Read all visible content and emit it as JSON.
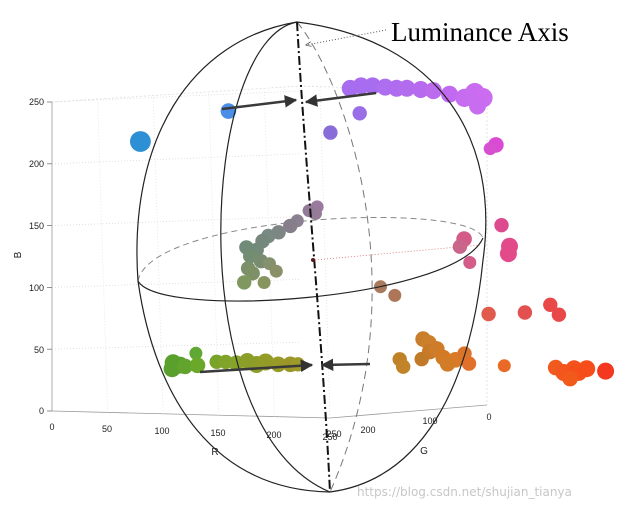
{
  "chart_data": {
    "type": "scatter",
    "projection": "3d",
    "title": "",
    "xlabel": "R",
    "ylabel": "G",
    "zlabel": "B",
    "xlim": [
      0,
      250
    ],
    "ylim": [
      0,
      250
    ],
    "zlim": [
      0,
      250
    ],
    "x_ticks": [
      "0",
      "50",
      "100",
      "150",
      "200",
      "250"
    ],
    "y_ticks": [
      "0",
      "100",
      "200",
      "250"
    ],
    "z_ticks": [
      "0",
      "50",
      "100",
      "150",
      "200",
      "250"
    ],
    "grid": true,
    "annotation": "Luminance Axis",
    "watermark": "https://blog.csdn.net/shujian_tianya",
    "points": [
      {
        "r": 40,
        "g": 180,
        "b": 216,
        "color": "#2d8fd4",
        "s": 1.6
      },
      {
        "r": 105,
        "g": 155,
        "b": 241,
        "color": "#4a8ee8",
        "s": 1.2
      },
      {
        "r": 175,
        "g": 85,
        "b": 258,
        "color": "#a86cf0",
        "s": 1.3
      },
      {
        "r": 182,
        "g": 80,
        "b": 260,
        "color": "#a86cf0",
        "s": 1.3
      },
      {
        "r": 190,
        "g": 76,
        "b": 260,
        "color": "#a86cf0",
        "s": 1.3
      },
      {
        "r": 198,
        "g": 70,
        "b": 259,
        "color": "#ae6ef0",
        "s": 1.3
      },
      {
        "r": 206,
        "g": 66,
        "b": 258,
        "color": "#b06cef",
        "s": 1.3
      },
      {
        "r": 213,
        "g": 62,
        "b": 258,
        "color": "#b46cee",
        "s": 1.3
      },
      {
        "r": 222,
        "g": 56,
        "b": 257,
        "color": "#b86aee",
        "s": 1.3
      },
      {
        "r": 230,
        "g": 50,
        "b": 256,
        "color": "#bc6aee",
        "s": 1.3
      },
      {
        "r": 240,
        "g": 42,
        "b": 253,
        "color": "#c26aef",
        "s": 1.3
      },
      {
        "r": 250,
        "g": 36,
        "b": 250,
        "color": "#c66cf0",
        "s": 1.4
      },
      {
        "r": 256,
        "g": 30,
        "b": 254,
        "color": "#c86cf0",
        "s": 1.5
      },
      {
        "r": 262,
        "g": 28,
        "b": 250,
        "color": "#cc6cf0",
        "s": 1.5
      },
      {
        "r": 255,
        "g": 24,
        "b": 243,
        "color": "#c86cf0",
        "s": 1.3
      },
      {
        "r": 183,
        "g": 84,
        "b": 238,
        "color": "#9a6ee6",
        "s": 1.1
      },
      {
        "r": 169,
        "g": 106,
        "b": 223,
        "color": "#8a6cd8",
        "s": 1.1
      },
      {
        "r": 262,
        "g": 7,
        "b": 211,
        "color": "#da4ad2",
        "s": 1.2
      },
      {
        "r": 258,
        "g": 9,
        "b": 208,
        "color": "#d650d0",
        "s": 1.0
      },
      {
        "r": 161,
        "g": 113,
        "b": 163,
        "color": "#9a7a9e",
        "s": 1.0
      },
      {
        "r": 163,
        "g": 119,
        "b": 158,
        "color": "#957d98",
        "s": 1.0
      },
      {
        "r": 155,
        "g": 115,
        "b": 160,
        "color": "#927a98",
        "s": 1.0
      },
      {
        "r": 150,
        "g": 125,
        "b": 152,
        "color": "#8a8090",
        "s": 1.0
      },
      {
        "r": 146,
        "g": 129,
        "b": 148,
        "color": "#867e8a",
        "s": 1.1
      },
      {
        "r": 140,
        "g": 137,
        "b": 143,
        "color": "#7d8684",
        "s": 1.1
      },
      {
        "r": 133,
        "g": 141,
        "b": 140,
        "color": "#788a82",
        "s": 1.1
      },
      {
        "r": 130,
        "g": 145,
        "b": 136,
        "color": "#76887e",
        "s": 1.1
      },
      {
        "r": 127,
        "g": 149,
        "b": 129,
        "color": "#738a78",
        "s": 1.1
      },
      {
        "r": 120,
        "g": 153,
        "b": 131,
        "color": "#708c78",
        "s": 1.1
      },
      {
        "r": 124,
        "g": 154,
        "b": 124,
        "color": "#738d72",
        "s": 1.1
      },
      {
        "r": 132,
        "g": 151,
        "b": 120,
        "color": "#7a8c70",
        "s": 1.1
      },
      {
        "r": 121,
        "g": 152,
        "b": 114,
        "color": "#7a8f6a",
        "s": 1.1
      },
      {
        "r": 124,
        "g": 150,
        "b": 110,
        "color": "#7e9066",
        "s": 1.1
      },
      {
        "r": 138,
        "g": 148,
        "b": 118,
        "color": "#84906e",
        "s": 1.0
      },
      {
        "r": 143,
        "g": 146,
        "b": 112,
        "color": "#8a9068",
        "s": 1.0
      },
      {
        "r": 122,
        "g": 160,
        "b": 103,
        "color": "#7e9860",
        "s": 1.1
      },
      {
        "r": 136,
        "g": 153,
        "b": 103,
        "color": "#88945e",
        "s": 1.0
      },
      {
        "r": 200,
        "g": 81,
        "b": 98,
        "color": "#a87a5e",
        "s": 1.0
      },
      {
        "r": 210,
        "g": 76,
        "b": 91,
        "color": "#ae7658",
        "s": 1.0
      },
      {
        "r": 252,
        "g": 40,
        "b": 136,
        "color": "#d35d88",
        "s": 1.2
      },
      {
        "r": 251,
        "g": 45,
        "b": 130,
        "color": "#c9658a",
        "s": 1.1
      },
      {
        "r": 256,
        "g": 38,
        "b": 117,
        "color": "#d35d88",
        "s": 1.0
      },
      {
        "r": 276,
        "g": 23,
        "b": 147,
        "color": "#de4a90",
        "s": 1.1
      },
      {
        "r": 280,
        "g": 19,
        "b": 124,
        "color": "#e34a8a",
        "s": 1.3
      },
      {
        "r": 281,
        "g": 19,
        "b": 130,
        "color": "#e34a8a",
        "s": 1.3
      },
      {
        "r": 288,
        "g": 7,
        "b": 76,
        "color": "#e35050",
        "s": 1.1
      },
      {
        "r": 303,
        "g": -7,
        "b": 82,
        "color": "#e84848",
        "s": 1.1
      },
      {
        "r": 309,
        "g": -10,
        "b": 74,
        "color": "#e84848",
        "s": 1.1
      },
      {
        "r": 265,
        "g": 24,
        "b": 75,
        "color": "#e05b4b",
        "s": 1.1
      },
      {
        "r": 82,
        "g": 166,
        "b": 45,
        "color": "#5fa833",
        "s": 1.0
      },
      {
        "r": 62,
        "g": 167,
        "b": 37,
        "color": "#5aa02c",
        "s": 1.3
      },
      {
        "r": 66,
        "g": 163,
        "b": 35,
        "color": "#5aa02c",
        "s": 1.3
      },
      {
        "r": 60,
        "g": 165,
        "b": 32,
        "color": "#5aa02c",
        "s": 1.3
      },
      {
        "r": 70,
        "g": 162,
        "b": 34,
        "color": "#62a42e",
        "s": 1.2
      },
      {
        "r": 80,
        "g": 160,
        "b": 35,
        "color": "#6aa82a",
        "s": 1.2
      },
      {
        "r": 95,
        "g": 156,
        "b": 38,
        "color": "#7aa32a",
        "s": 1.1
      },
      {
        "r": 102,
        "g": 154,
        "b": 38,
        "color": "#80a42a",
        "s": 1.1
      },
      {
        "r": 110,
        "g": 151,
        "b": 37,
        "color": "#86a32a",
        "s": 1.2
      },
      {
        "r": 118,
        "g": 148,
        "b": 39,
        "color": "#8a9e28",
        "s": 1.2
      },
      {
        "r": 124,
        "g": 144,
        "b": 36,
        "color": "#8e9c28",
        "s": 1.3
      },
      {
        "r": 130,
        "g": 140,
        "b": 38,
        "color": "#949c28",
        "s": 1.3
      },
      {
        "r": 138,
        "g": 134,
        "b": 36,
        "color": "#989a28",
        "s": 1.2
      },
      {
        "r": 146,
        "g": 129,
        "b": 36,
        "color": "#9c9628",
        "s": 1.2
      },
      {
        "r": 151,
        "g": 126,
        "b": 36,
        "color": "#9d9a2a",
        "s": 1.1
      },
      {
        "r": 211,
        "g": 70,
        "b": 39,
        "color": "#c08228",
        "s": 1.1
      },
      {
        "r": 213,
        "g": 68,
        "b": 33,
        "color": "#c28428",
        "s": 1.1
      },
      {
        "r": 223,
        "g": 54,
        "b": 55,
        "color": "#c87e2c",
        "s": 1.2
      },
      {
        "r": 227,
        "g": 52,
        "b": 52,
        "color": "#cc802c",
        "s": 1.2
      },
      {
        "r": 229,
        "g": 54,
        "b": 45,
        "color": "#c87a28",
        "s": 1.2
      },
      {
        "r": 232,
        "g": 48,
        "b": 47,
        "color": "#ce7c2a",
        "s": 1.2
      },
      {
        "r": 224,
        "g": 58,
        "b": 39,
        "color": "#c07a28",
        "s": 1.1
      },
      {
        "r": 236,
        "g": 45,
        "b": 40,
        "color": "#d27a26",
        "s": 1.2
      },
      {
        "r": 243,
        "g": 38,
        "b": 38,
        "color": "#d87a26",
        "s": 1.2
      },
      {
        "r": 240,
        "g": 45,
        "b": 35,
        "color": "#d27c28",
        "s": 1.2
      },
      {
        "r": 249,
        "g": 34,
        "b": 43,
        "color": "#da7428",
        "s": 1.1
      },
      {
        "r": 253,
        "g": 34,
        "b": 35,
        "color": "#e0702a",
        "s": 1.1
      },
      {
        "r": 274,
        "g": 15,
        "b": 33,
        "color": "#e86a26",
        "s": 1.0
      },
      {
        "r": 305,
        "g": -12,
        "b": 31,
        "color": "#f05a1e",
        "s": 1.2
      },
      {
        "r": 310,
        "g": -16,
        "b": 27,
        "color": "#f2561c",
        "s": 1.3
      },
      {
        "r": 317,
        "g": -20,
        "b": 30,
        "color": "#f4521c",
        "s": 1.3
      },
      {
        "r": 320,
        "g": -22,
        "b": 27,
        "color": "#f5501a",
        "s": 1.3
      },
      {
        "r": 325,
        "g": -26,
        "b": 30,
        "color": "#f64e1a",
        "s": 1.3
      },
      {
        "r": 314,
        "g": -19,
        "b": 22,
        "color": "#f25a1c",
        "s": 1.2
      },
      {
        "r": 338,
        "g": -33,
        "b": 28,
        "color": "#f43820",
        "s": 1.3
      }
    ]
  }
}
